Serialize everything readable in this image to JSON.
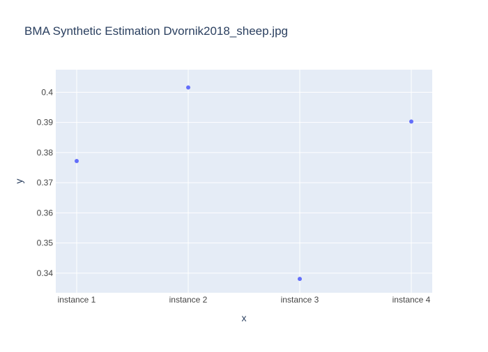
{
  "chart_data": {
    "type": "scatter",
    "title": "BMA Synthetic Estimation Dvornik2018_sheep.jpg",
    "xlabel": "x",
    "ylabel": "y",
    "categories": [
      "instance 1",
      "instance 2",
      "instance 3",
      "instance 4"
    ],
    "series": [
      {
        "values": [
          0.3772,
          0.4016,
          0.3381,
          0.3903
        ]
      }
    ],
    "ylim": [
      0.3335,
      0.4075
    ],
    "yticks": [
      "0.34",
      "0.35",
      "0.36",
      "0.37",
      "0.38",
      "0.39",
      "0.4"
    ],
    "grid": true,
    "legend": "none",
    "colors": {
      "marker": "#636efa",
      "plot_background": "#e5ecf6",
      "gridline": "#ffffff",
      "text": "#2a3f5f",
      "tick_text": "#444444"
    }
  }
}
